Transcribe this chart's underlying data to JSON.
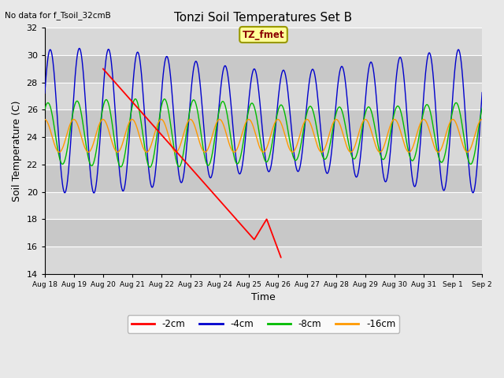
{
  "title": "Tonzi Soil Temperatures Set B",
  "xlabel": "Time",
  "ylabel": "Soil Temperature (C)",
  "no_data_text": "No data for f_Tsoil_32cmB",
  "tz_fmet_label": "TZ_fmet",
  "ylim": [
    14,
    32
  ],
  "yticks": [
    14,
    16,
    18,
    20,
    22,
    24,
    26,
    28,
    30,
    32
  ],
  "background_color": "#e8e8e8",
  "plot_bg_bands": [
    "#d8d8d8",
    "#c8c8c8"
  ],
  "grid_color": "#ffffff",
  "colors": {
    "2cm": "#ff0000",
    "4cm": "#0000cc",
    "8cm": "#00bb00",
    "16cm": "#ff9900"
  },
  "legend_labels": [
    "-2cm",
    "-4cm",
    "-8cm",
    "-16cm"
  ],
  "n_days": 15,
  "pts_per_day": 96
}
